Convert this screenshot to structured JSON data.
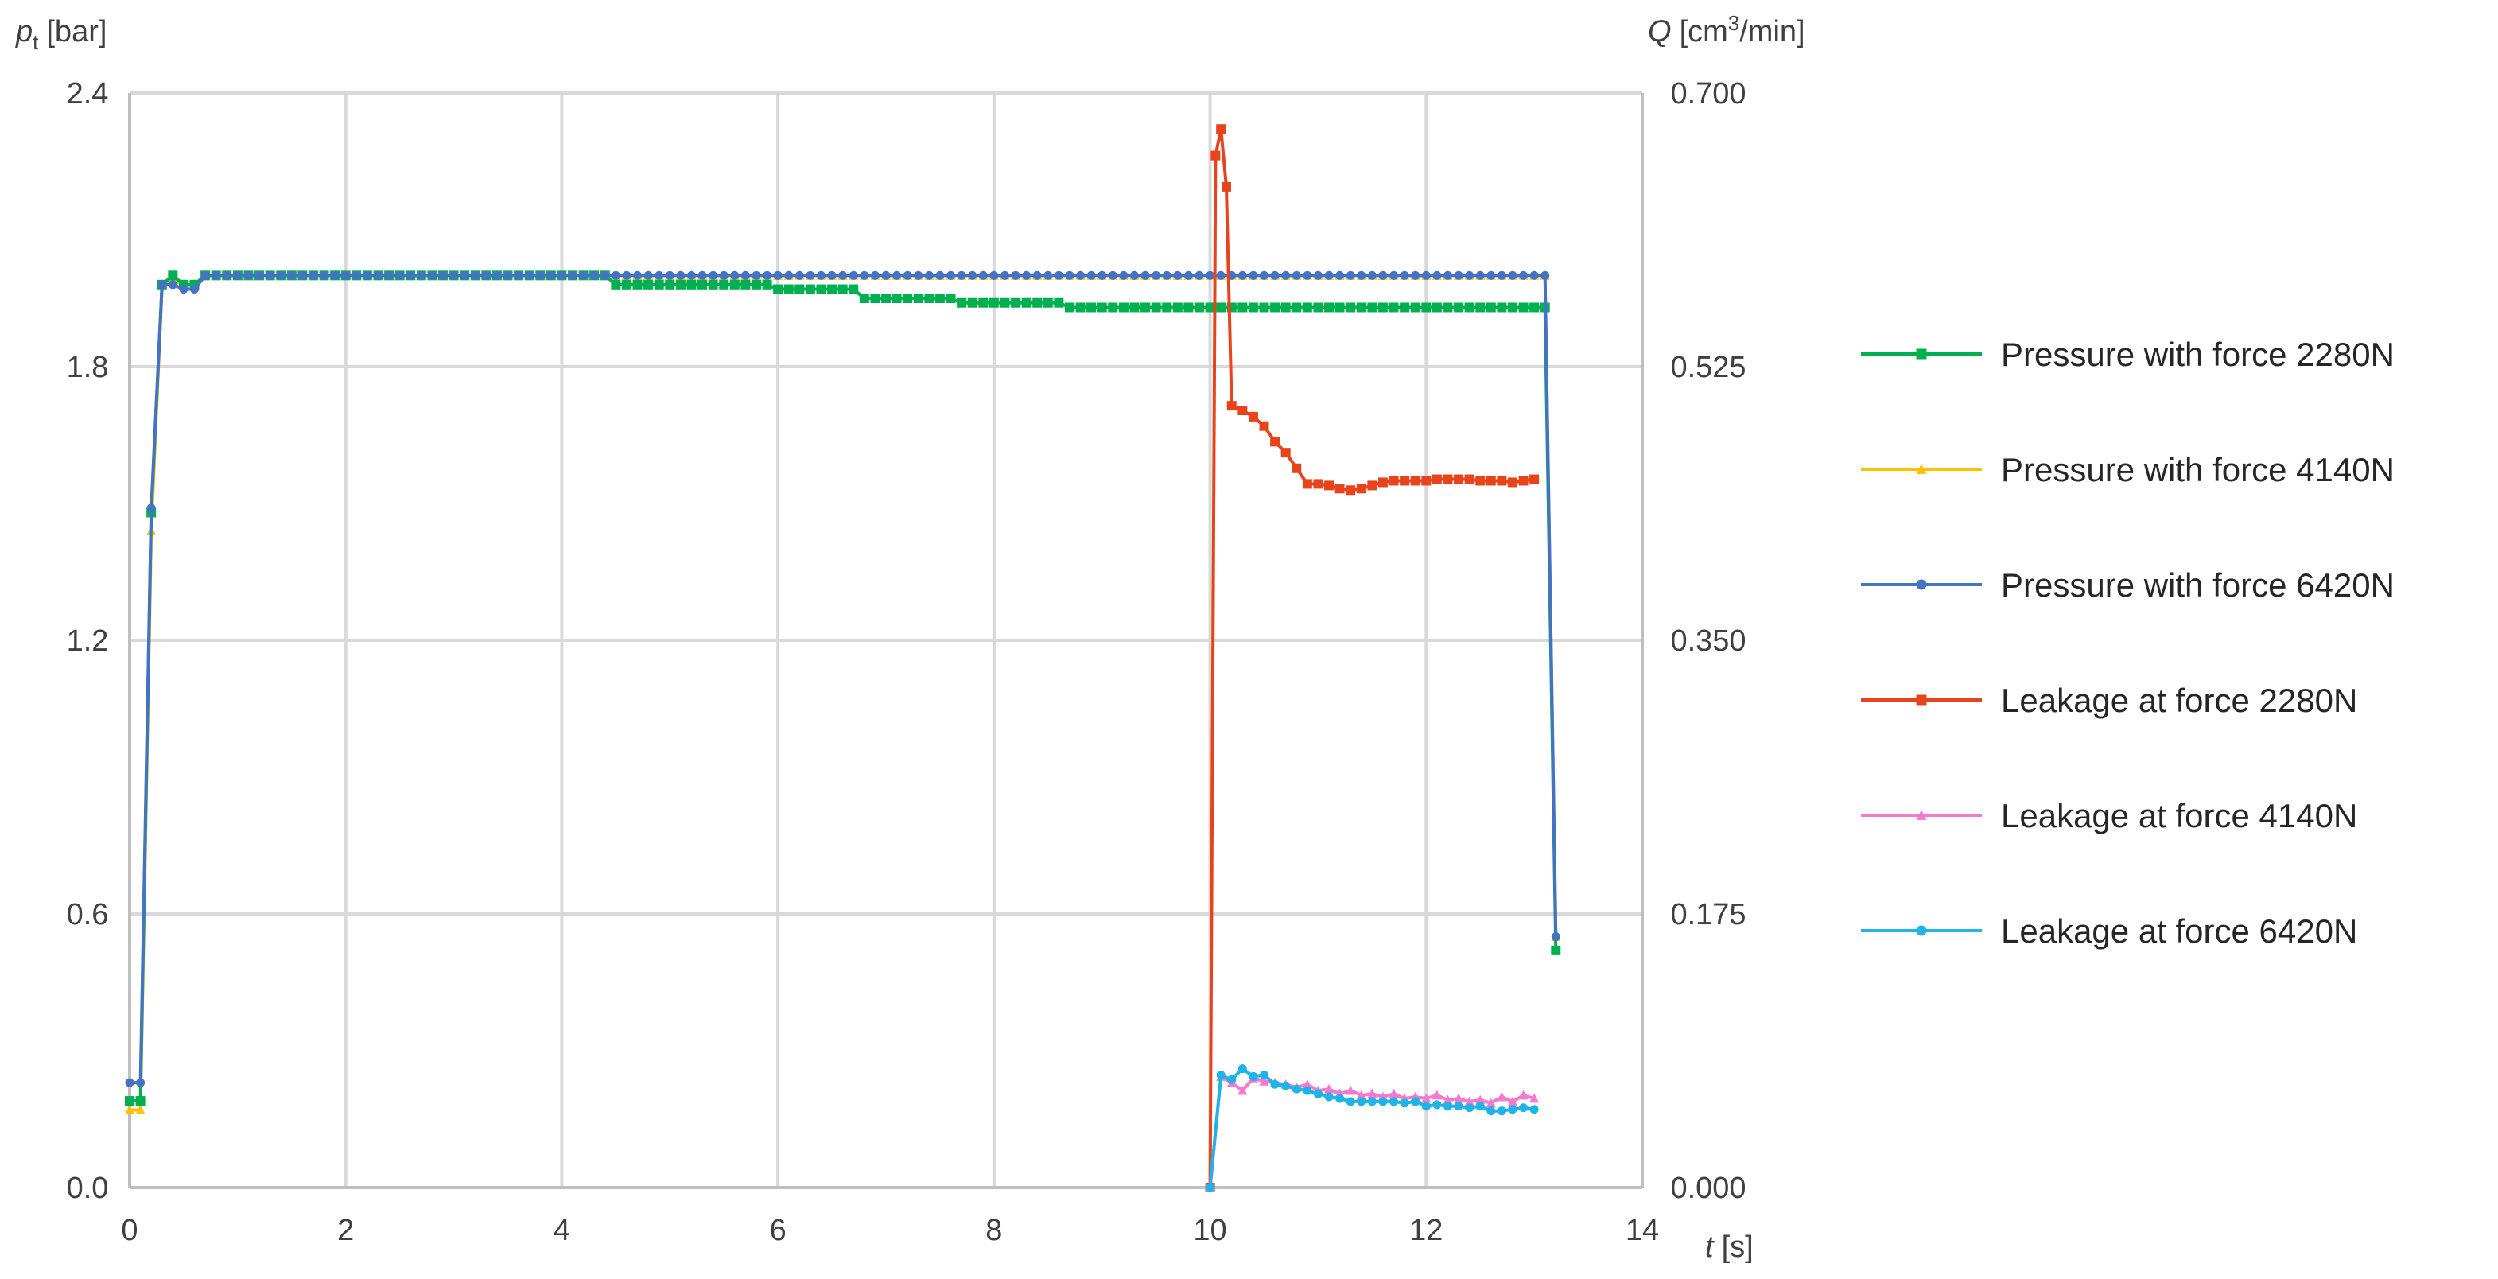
{
  "chart_data": {
    "type": "line",
    "x_axis": {
      "label_symbol": "t",
      "label_unit": "[s]",
      "range": [
        0,
        14
      ],
      "ticks": [
        "0",
        "2",
        "4",
        "6",
        "8",
        "10",
        "12",
        "14"
      ]
    },
    "y_axis_left": {
      "label_symbol": "p",
      "label_subscript": "t",
      "label_unit": "[bar]",
      "range": [
        0,
        2.4
      ],
      "ticks": [
        "0.0",
        "0.6",
        "1.2",
        "1.8",
        "2.4"
      ]
    },
    "y_axis_right": {
      "label_symbol": "Q",
      "label_unit_pre": "[cm",
      "label_unit_sup": "3",
      "label_unit_post": "/min]",
      "range": [
        0,
        0.7
      ],
      "ticks": [
        "0.000",
        "0.175",
        "0.350",
        "0.525",
        "0.700"
      ]
    },
    "grid": true,
    "legend_position": "right",
    "series": [
      {
        "name": "Pressure with force 2280N",
        "axis": "left",
        "color": "#00B050",
        "marker": "square",
        "x": [
          0.0,
          0.1,
          0.2,
          0.3,
          0.4,
          0.5,
          0.6,
          0.7,
          1.0,
          2.0,
          3.0,
          4.0,
          4.5,
          5.0,
          5.9,
          6.0,
          6.7,
          6.8,
          7.6,
          7.7,
          8.6,
          8.7,
          9.5,
          10.0,
          11.0,
          12.0,
          13.0,
          13.1,
          13.2
        ],
        "y": [
          0.19,
          0.19,
          1.48,
          1.98,
          2.0,
          1.98,
          1.98,
          2.0,
          2.0,
          2.0,
          2.0,
          2.0,
          1.98,
          1.98,
          1.98,
          1.97,
          1.97,
          1.95,
          1.95,
          1.94,
          1.94,
          1.93,
          1.93,
          1.93,
          1.93,
          1.93,
          1.93,
          1.93,
          0.52
        ]
      },
      {
        "name": "Pressure with force 4140N",
        "axis": "left",
        "color": "#FFC000",
        "marker": "triangle",
        "x": [
          0.0,
          0.1,
          0.2,
          0.3,
          0.4,
          0.5,
          0.6,
          0.7,
          1.0,
          2.0,
          3.0,
          4.0,
          5.0,
          6.0,
          7.0,
          8.0,
          9.0,
          10.0,
          11.0,
          12.0,
          13.0,
          13.1,
          13.2
        ],
        "y": [
          0.17,
          0.17,
          1.44,
          1.98,
          1.99,
          1.98,
          1.98,
          2.0,
          2.0,
          2.0,
          2.0,
          2.0,
          2.0,
          2.0,
          2.0,
          2.0,
          2.0,
          2.0,
          2.0,
          2.0,
          2.0,
          2.0,
          0.55
        ]
      },
      {
        "name": "Pressure with force 6420N",
        "axis": "left",
        "color": "#4472C4",
        "marker": "circle",
        "x": [
          0.0,
          0.1,
          0.2,
          0.3,
          0.4,
          0.5,
          0.6,
          0.7,
          1.0,
          2.0,
          3.0,
          4.0,
          5.0,
          6.0,
          7.0,
          8.0,
          9.0,
          10.0,
          11.0,
          12.0,
          13.0,
          13.1,
          13.2
        ],
        "y": [
          0.23,
          0.23,
          1.49,
          1.98,
          1.98,
          1.97,
          1.97,
          2.0,
          2.0,
          2.0,
          2.0,
          2.0,
          2.0,
          2.0,
          2.0,
          2.0,
          2.0,
          2.0,
          2.0,
          2.0,
          2.0,
          2.0,
          0.55
        ]
      },
      {
        "name": "Leakage at force 2280N",
        "axis": "right",
        "color": "#E8441C",
        "marker": "square",
        "x": [
          10.0,
          10.05,
          10.1,
          10.15,
          10.2,
          10.3,
          10.4,
          10.5,
          10.6,
          10.7,
          10.8,
          10.9,
          11.0,
          11.1,
          11.2,
          11.3,
          11.4,
          11.5,
          11.6,
          11.7,
          11.8,
          11.9,
          12.0,
          12.1,
          12.2,
          12.3,
          12.4,
          12.5,
          12.6,
          12.7,
          12.8,
          12.9,
          13.0
        ],
        "y": [
          0.0,
          0.66,
          0.677,
          0.64,
          0.5,
          0.497,
          0.493,
          0.487,
          0.477,
          0.47,
          0.46,
          0.45,
          0.45,
          0.449,
          0.447,
          0.446,
          0.447,
          0.449,
          0.451,
          0.452,
          0.452,
          0.452,
          0.452,
          0.453,
          0.453,
          0.453,
          0.453,
          0.452,
          0.452,
          0.452,
          0.451,
          0.452,
          0.453
        ]
      },
      {
        "name": "Leakage at force 4140N",
        "axis": "right",
        "color": "#F47AD0",
        "marker": "triangle",
        "x": [
          10.0,
          10.1,
          10.2,
          10.3,
          10.4,
          10.5,
          10.6,
          10.7,
          10.8,
          10.9,
          11.0,
          11.1,
          11.2,
          11.3,
          11.4,
          11.5,
          11.6,
          11.7,
          11.8,
          11.9,
          12.0,
          12.1,
          12.2,
          12.3,
          12.4,
          12.5,
          12.6,
          12.7,
          12.8,
          12.9,
          13.0
        ],
        "y": [
          0.0,
          0.071,
          0.067,
          0.062,
          0.07,
          0.068,
          0.067,
          0.066,
          0.064,
          0.066,
          0.062,
          0.063,
          0.06,
          0.062,
          0.059,
          0.06,
          0.058,
          0.06,
          0.057,
          0.058,
          0.057,
          0.059,
          0.056,
          0.057,
          0.055,
          0.056,
          0.054,
          0.058,
          0.055,
          0.059,
          0.057
        ]
      },
      {
        "name": "Leakage at force 6420N",
        "axis": "right",
        "color": "#1FB3E8",
        "marker": "circle",
        "x": [
          10.0,
          10.1,
          10.2,
          10.3,
          10.4,
          10.5,
          10.6,
          10.7,
          10.8,
          10.9,
          11.0,
          11.1,
          11.2,
          11.3,
          11.4,
          11.5,
          11.6,
          11.7,
          11.8,
          11.9,
          12.0,
          12.1,
          12.2,
          12.3,
          12.4,
          12.5,
          12.6,
          12.7,
          12.8,
          12.9,
          13.0
        ],
        "y": [
          0.0,
          0.072,
          0.069,
          0.076,
          0.071,
          0.072,
          0.066,
          0.065,
          0.063,
          0.062,
          0.06,
          0.058,
          0.057,
          0.055,
          0.055,
          0.055,
          0.055,
          0.055,
          0.054,
          0.055,
          0.052,
          0.053,
          0.052,
          0.052,
          0.051,
          0.052,
          0.049,
          0.049,
          0.05,
          0.051,
          0.05
        ]
      }
    ]
  }
}
